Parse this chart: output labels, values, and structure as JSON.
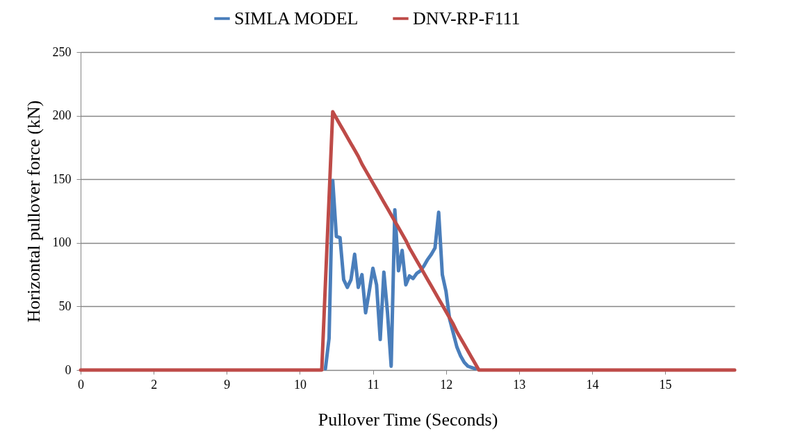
{
  "chart_data": {
    "type": "line",
    "xlabel": "Pullover Time (Seconds)",
    "ylabel": "Horizontal pullover force (kN)",
    "categories": [
      "0",
      null,
      null,
      null,
      null,
      null,
      null,
      null,
      null,
      null,
      null,
      null,
      null,
      null,
      null,
      null,
      null,
      null,
      null,
      null,
      "2",
      null,
      null,
      null,
      null,
      null,
      null,
      null,
      null,
      null,
      null,
      null,
      null,
      null,
      null,
      null,
      null,
      null,
      null,
      null,
      "9",
      null,
      null,
      null,
      null,
      null,
      null,
      null,
      null,
      null,
      null,
      null,
      null,
      null,
      null,
      null,
      null,
      null,
      null,
      null,
      "10",
      null,
      null,
      null,
      null,
      null,
      null,
      null,
      null,
      null,
      null,
      null,
      null,
      null,
      null,
      null,
      null,
      null,
      null,
      null,
      "11",
      null,
      null,
      null,
      null,
      null,
      null,
      null,
      null,
      null,
      null,
      null,
      null,
      null,
      null,
      null,
      null,
      null,
      null,
      null,
      "12",
      null,
      null,
      null,
      null,
      null,
      null,
      null,
      null,
      null,
      null,
      null,
      null,
      null,
      null,
      null,
      null,
      null,
      null,
      null,
      "13",
      null,
      null,
      null,
      null,
      null,
      null,
      null,
      null,
      null,
      null,
      null,
      null,
      null,
      null,
      null,
      null,
      null,
      null,
      null,
      "14",
      null,
      null,
      null,
      null,
      null,
      null,
      null,
      null,
      null,
      null,
      null,
      null,
      null,
      null,
      null,
      null,
      null,
      null,
      null,
      "15",
      null,
      null,
      null,
      null,
      null,
      null,
      null,
      null,
      null,
      null,
      null,
      null,
      null,
      null,
      null,
      null,
      null,
      null,
      null
    ],
    "series": [
      {
        "name": "SIMLA MODEL",
        "color": "#4a7ebb",
        "values": [
          null,
          null,
          null,
          null,
          null,
          null,
          null,
          null,
          null,
          null,
          null,
          null,
          null,
          null,
          null,
          null,
          null,
          null,
          null,
          null,
          null,
          null,
          null,
          null,
          null,
          null,
          null,
          null,
          null,
          null,
          null,
          null,
          null,
          null,
          null,
          null,
          null,
          null,
          null,
          null,
          null,
          null,
          null,
          null,
          null,
          null,
          null,
          null,
          null,
          null,
          null,
          null,
          null,
          null,
          null,
          null,
          null,
          null,
          null,
          null,
          null,
          null,
          null,
          null,
          null,
          null,
          null,
          1,
          25,
          149,
          105,
          104,
          71,
          65,
          71,
          91,
          65,
          75,
          45,
          62,
          80,
          67,
          24,
          77,
          45,
          3,
          126,
          78,
          94,
          67,
          74,
          72,
          76,
          78,
          82,
          87,
          91,
          96,
          124,
          75,
          62,
          40,
          29,
          18,
          11,
          6,
          3,
          2,
          1,
          null,
          null,
          null,
          null,
          null,
          null,
          null,
          null,
          null,
          null,
          null,
          null,
          null,
          null,
          null,
          null,
          null,
          null,
          null,
          null,
          null,
          null,
          null,
          null,
          null,
          null,
          null,
          null,
          null,
          null,
          null,
          null,
          null,
          null,
          null,
          null,
          null,
          null,
          null,
          null,
          null,
          null,
          null,
          null,
          null,
          null,
          null,
          null,
          null,
          null,
          null,
          null,
          null,
          null,
          null,
          null,
          null,
          null,
          null,
          null,
          null,
          null,
          null,
          null,
          null,
          null,
          null,
          null,
          null,
          null,
          null
        ]
      },
      {
        "name": "DNV-RP-F111",
        "color": "#be4b48",
        "values": [
          0,
          0,
          0,
          0,
          0,
          0,
          0,
          0,
          0,
          0,
          0,
          0,
          0,
          0,
          0,
          0,
          0,
          0,
          0,
          0,
          0,
          0,
          0,
          0,
          0,
          0,
          0,
          0,
          0,
          0,
          0,
          0,
          0,
          0,
          0,
          0,
          0,
          0,
          0,
          0,
          0,
          0,
          0,
          0,
          0,
          0,
          0,
          0,
          0,
          0,
          0,
          0,
          0,
          0,
          0,
          0,
          0,
          0,
          0,
          0,
          0,
          0,
          0,
          0,
          0,
          0,
          0,
          68,
          135,
          203,
          198,
          193,
          188,
          183,
          178,
          173,
          168,
          162,
          157,
          152,
          147,
          142,
          137,
          132,
          127,
          122,
          117,
          112,
          107,
          102,
          96,
          91,
          86,
          81,
          76,
          71,
          66,
          61,
          56,
          51,
          46,
          41,
          36,
          30,
          25,
          20,
          15,
          10,
          5,
          0,
          0,
          0,
          0,
          0,
          0,
          0,
          0,
          0,
          0,
          0,
          0,
          0,
          0,
          0,
          0,
          0,
          0,
          0,
          0,
          0,
          0,
          0,
          0,
          0,
          0,
          0,
          0,
          0,
          0,
          0,
          0,
          0,
          0,
          0,
          0,
          0,
          0,
          0,
          0,
          0,
          0,
          0,
          0,
          0,
          0,
          0,
          0,
          0,
          0,
          0,
          0,
          0,
          0,
          0,
          0,
          0,
          0,
          0,
          0,
          0,
          0,
          0,
          0,
          0,
          0,
          0,
          0,
          0,
          0,
          0
        ]
      }
    ],
    "ylim": [
      0,
      250
    ],
    "yticks": [
      0,
      50,
      100,
      150,
      200,
      250
    ],
    "grid": "y",
    "legend": "top"
  }
}
